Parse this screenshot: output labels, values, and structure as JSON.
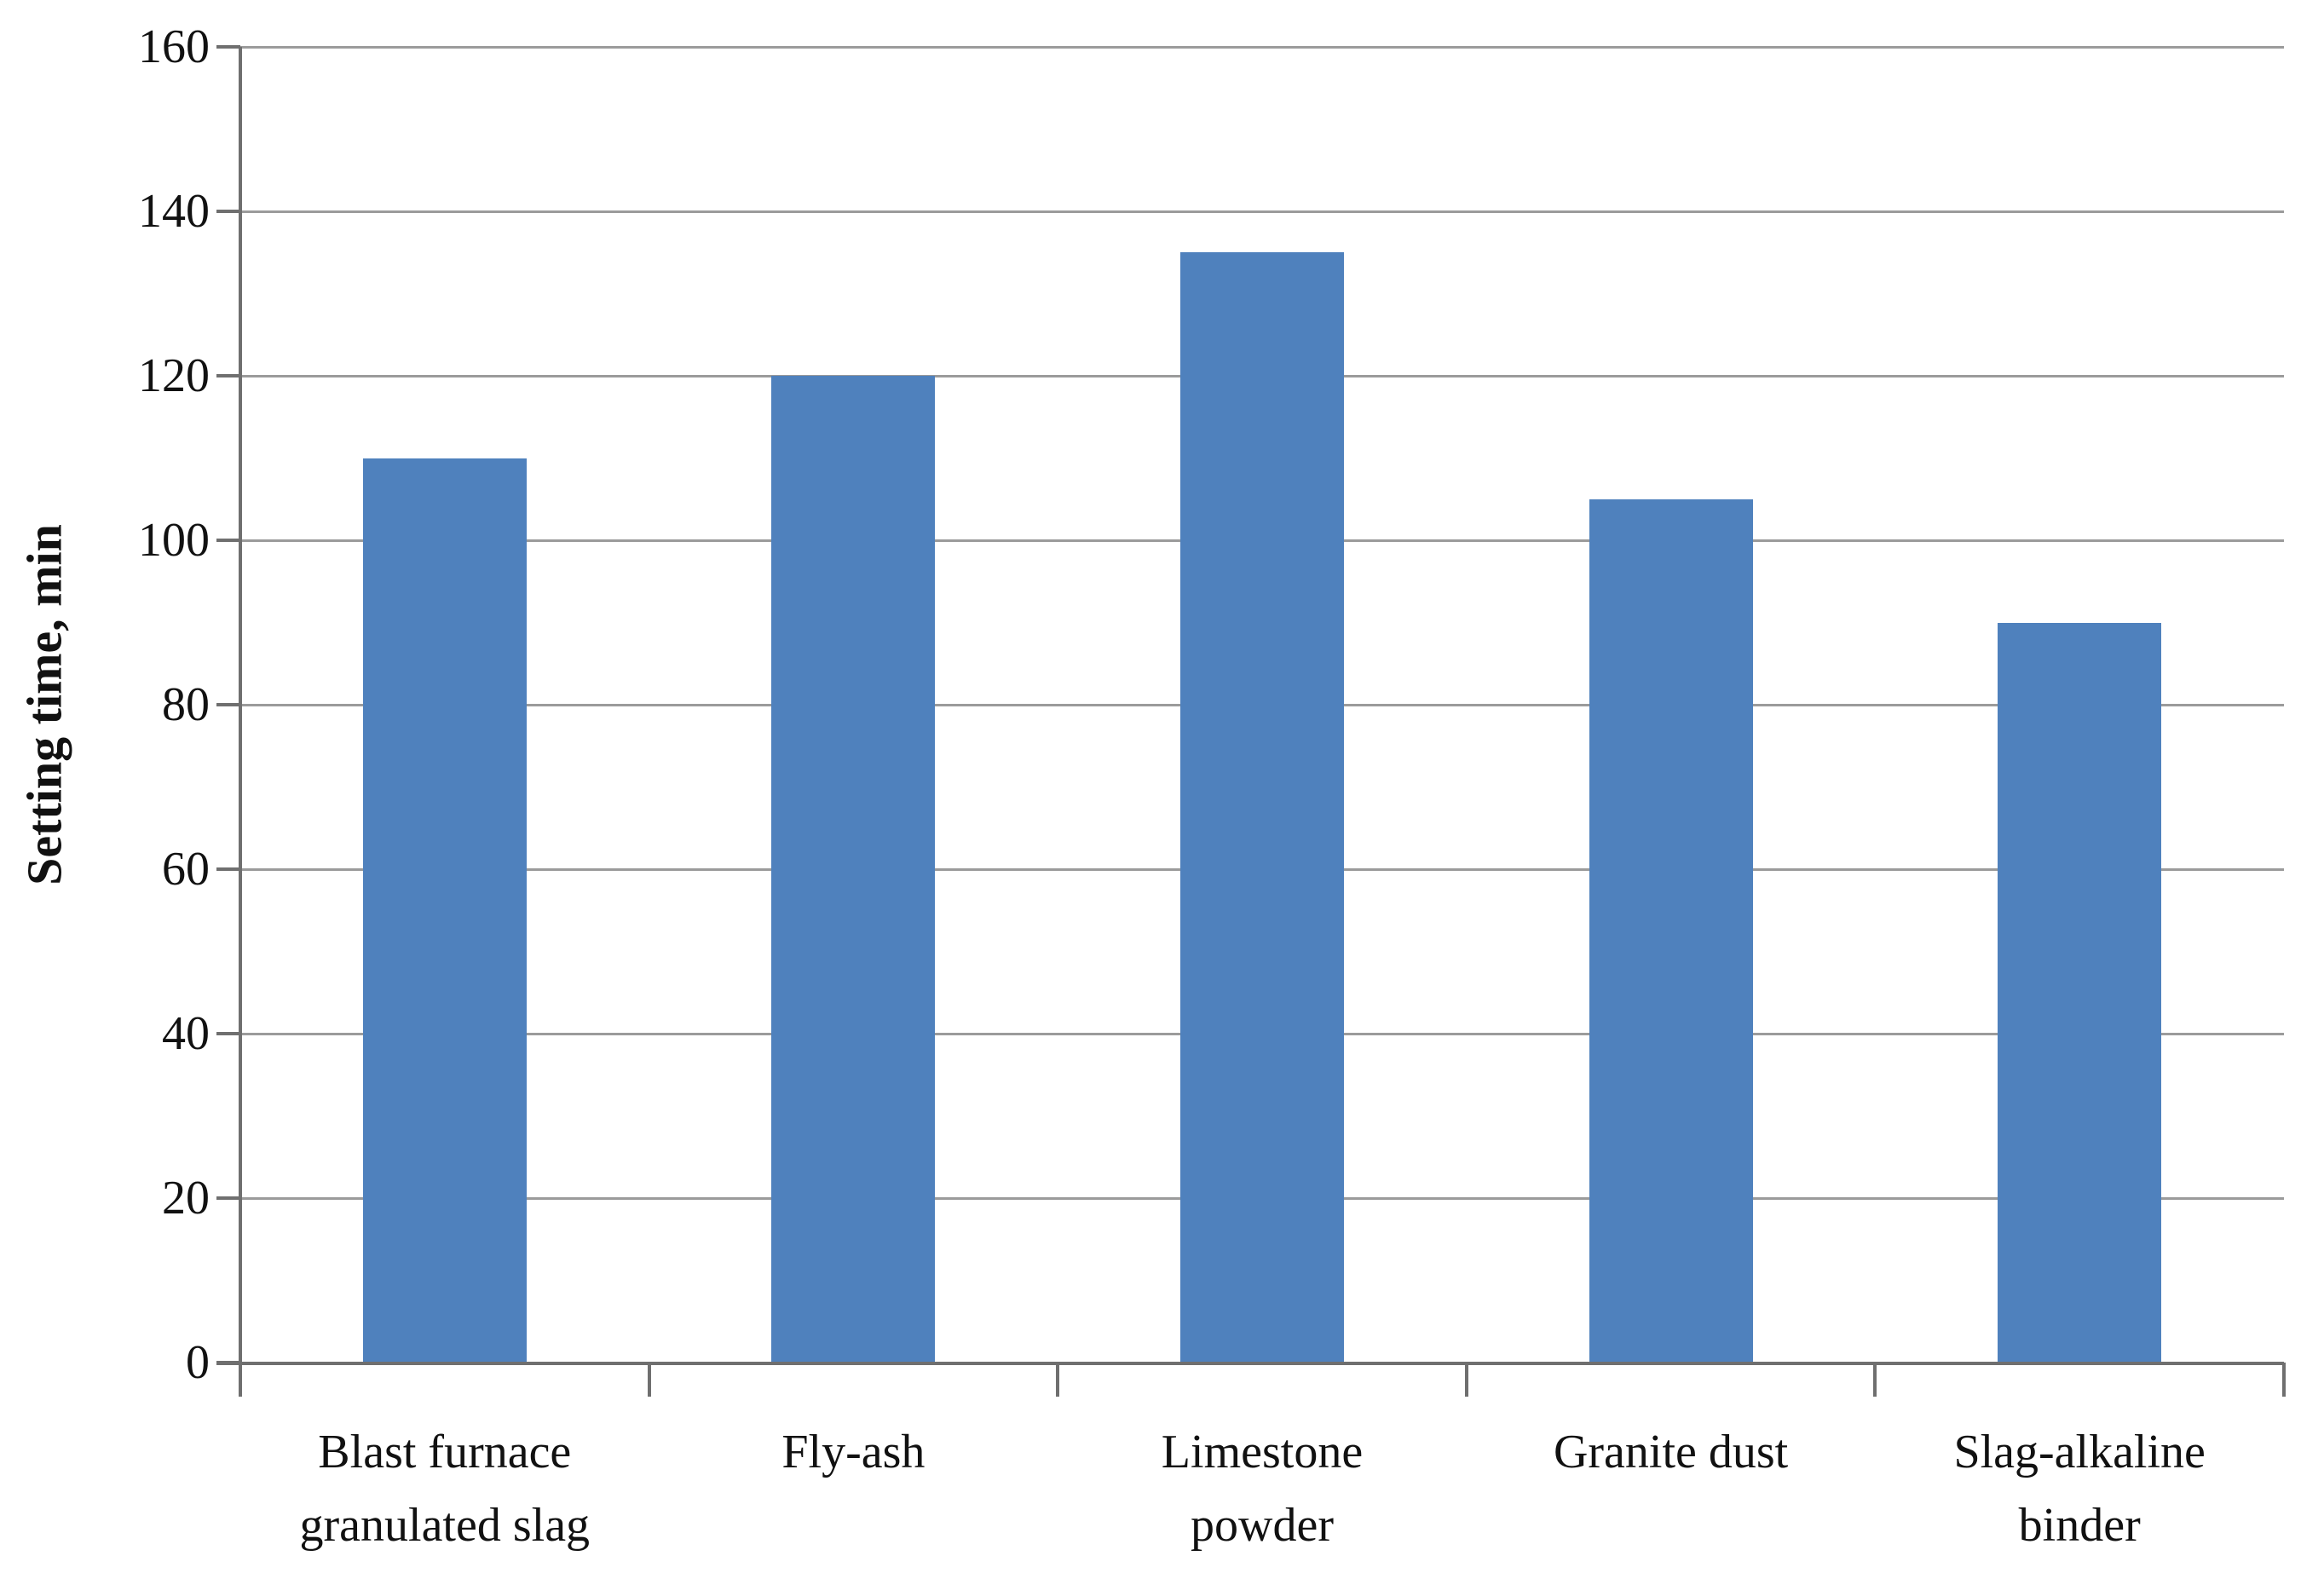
{
  "chart_data": {
    "type": "bar",
    "categories": [
      "Blast furnace granulated slag",
      "Fly-ash",
      "Limestone powder",
      "Granite dust",
      "Slag-alkaline binder"
    ],
    "values": [
      110,
      120,
      135,
      105,
      90
    ],
    "title": "",
    "xlabel": "",
    "ylabel": "Setting time, min",
    "ylim": [
      0,
      160
    ],
    "yticks": [
      0,
      20,
      40,
      60,
      80,
      100,
      120,
      140,
      160
    ],
    "grid": true,
    "legend": "none",
    "bar_color": "#4f81bd",
    "gridline_color": "#9b9b9b",
    "axis_color": "#6f6f6f",
    "text_color": "#111111",
    "background_color": "#ffffff"
  }
}
